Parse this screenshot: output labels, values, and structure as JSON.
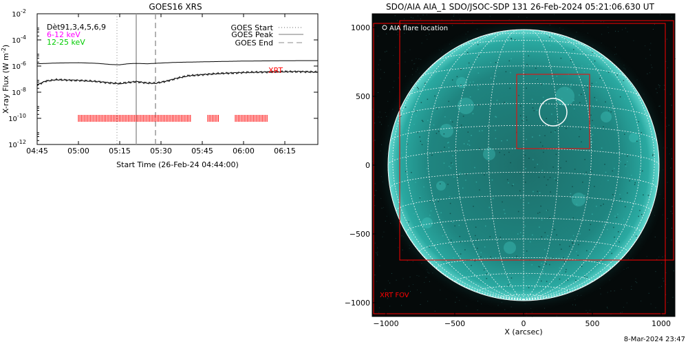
{
  "left_panel": {
    "title": "GOES16 XRS",
    "ylabel": "X-ray Flux (W m",
    "ylabel_sup": "-2",
    "ylabel_close": ")",
    "xlabel": "Start Time (26-Feb-24 04:44:00)",
    "info_line": "Dèt91,3,4,5,6,9",
    "band_low": "6-12 keV",
    "band_high": "12-25 keV",
    "xrt_label": "XRT",
    "legend": [
      {
        "label": "GOES Start",
        "style": "dotted"
      },
      {
        "label": "GOES Peak",
        "style": "solid"
      },
      {
        "label": "GOES End",
        "style": "dashed"
      }
    ],
    "colors": {
      "band_low": "#ff00ff",
      "band_high": "#00cc00",
      "xrt": "#ff0000"
    }
  },
  "right_panel": {
    "title": "SDO/AIA AIA_1 SDO/JSOC-SDP 131 26-Feb-2024 05:21:06.630 UT",
    "flare_label": "AIA flare location",
    "fov_label": "XRT FOV",
    "xlabel": "X (arcsec)",
    "footer": "8-Mar-2024 23:47",
    "colors": {
      "frame": "#ff0000",
      "disk": "#2dbcb4",
      "grid": "#ffffff"
    }
  },
  "chart_data": [
    {
      "type": "line",
      "title": "GOES16 XRS",
      "xlabel": "Start Time (26-Feb-24 04:44:00)",
      "ylabel": "X-ray Flux (W m^-2)",
      "yscale": "log",
      "xlim": [
        "04:45",
        "06:27"
      ],
      "ylim": [
        1e-12,
        0.01
      ],
      "xticks": [
        "04:45",
        "05:00",
        "05:15",
        "05:30",
        "05:45",
        "06:00",
        "06:15"
      ],
      "yticks": [
        {
          "value": 1e-12,
          "label": "10",
          "exp": "-12"
        },
        {
          "value": 1e-10,
          "label": "10",
          "exp": "-10"
        },
        {
          "value": 1e-08,
          "label": "10",
          "exp": "-8"
        },
        {
          "value": 1e-06,
          "label": "10",
          "exp": "-6"
        },
        {
          "value": 0.0001,
          "label": "10",
          "exp": "-4"
        },
        {
          "value": 0.01,
          "label": "10",
          "exp": "-2"
        }
      ],
      "series": [
        {
          "name": "",
          "band": "low-energy",
          "x": [
            "04:45",
            "04:52",
            "05:00",
            "05:07",
            "05:12",
            "05:15",
            "05:18",
            "05:21",
            "05:25",
            "05:30",
            "05:35",
            "05:40",
            "05:45",
            "05:50",
            "05:55",
            "06:00",
            "06:10",
            "06:20",
            "06:27"
          ],
          "y": [
            1.5e-06,
            1.7e-06,
            1.8e-06,
            1.6e-06,
            1.3e-06,
            1.25e-06,
            1.5e-06,
            1.6e-06,
            1.5e-06,
            1.7e-06,
            1.9e-06,
            2e-06,
            2.1e-06,
            2.2e-06,
            2.3e-06,
            2.4e-06,
            2.5e-06,
            2.6e-06,
            2.6e-06
          ]
        },
        {
          "name": "",
          "band": "high-energy",
          "x": [
            "04:45",
            "04:48",
            "04:52",
            "05:00",
            "05:07",
            "05:12",
            "05:15",
            "05:18",
            "05:21",
            "05:25",
            "05:28",
            "05:32",
            "05:36",
            "05:40",
            "05:45",
            "05:50",
            "05:55",
            "06:00",
            "06:10",
            "06:20",
            "06:27"
          ],
          "y": [
            3.5e-08,
            7e-08,
            9e-08,
            8e-08,
            6.5e-08,
            5e-08,
            4.5e-08,
            5.5e-08,
            6.5e-08,
            5e-08,
            4.8e-08,
            7e-08,
            1.2e-07,
            1.8e-07,
            2.2e-07,
            2.6e-07,
            2.9e-07,
            3.2e-07,
            3.6e-07,
            3.8e-07,
            3.4e-07
          ]
        }
      ],
      "markers": {
        "goes_start": "05:14",
        "goes_peak": "05:21",
        "goes_end": "05:28"
      },
      "xrt_level": 1e-10,
      "xrt_spans": [
        [
          "05:00",
          "05:41"
        ],
        [
          "05:47",
          "05:51"
        ],
        [
          "05:57",
          "06:09"
        ]
      ]
    },
    {
      "type": "image",
      "title": "SDO/AIA AIA_1 SDO/JSOC-SDP 131 26-Feb-2024 05:21:06.630 UT",
      "xlabel": "X (arcsec)",
      "xlim": [
        -1100,
        1100
      ],
      "ylim": [
        -1100,
        1100
      ],
      "xticks": [
        -1000,
        -500,
        0,
        500,
        1000
      ],
      "yticks": [
        -1000,
        -500,
        0,
        500,
        1000
      ],
      "solar_radius": 985,
      "flare_location": {
        "x": 215,
        "y": 385,
        "r": 100
      },
      "boxes": [
        {
          "x0": -1090,
          "y0": -1080,
          "x1": 1030,
          "y1": 1030
        },
        {
          "x0": -900,
          "y0": -690,
          "x1": 1090,
          "y1": 1050
        },
        {
          "x0": -50,
          "y0": 120,
          "x1": 480,
          "y1": 660
        }
      ]
    }
  ]
}
